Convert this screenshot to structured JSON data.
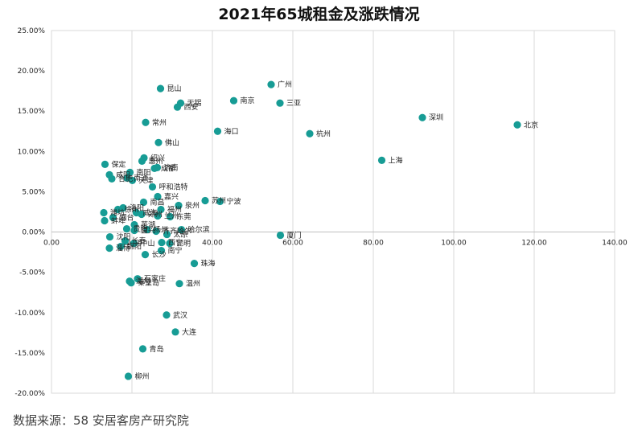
{
  "chart_data": {
    "type": "scatter",
    "title": "2021年65城租金及涨跌情况",
    "xlabel": "",
    "ylabel": "",
    "xlim": [
      0,
      140
    ],
    "ylim": [
      -20,
      25
    ],
    "x_ticks": [
      "0.00",
      "20.00",
      "40.00",
      "60.00",
      "80.00",
      "100.00",
      "120.00",
      "140.00"
    ],
    "y_ticks": [
      "-20.00%",
      "-15.00%",
      "-10.00%",
      "-5.00%",
      "0.00%",
      "5.00%",
      "10.00%",
      "15.00%",
      "20.00%",
      "25.00%"
    ],
    "grid": "vertical",
    "marker_color": "#179c95",
    "points": [
      {
        "name": "北京",
        "x": 115.8,
        "y": 13.3
      },
      {
        "name": "深圳",
        "x": 92.2,
        "y": 14.2
      },
      {
        "name": "上海",
        "x": 82.1,
        "y": 8.9
      },
      {
        "name": "杭州",
        "x": 64.2,
        "y": 12.2
      },
      {
        "name": "三亚",
        "x": 56.8,
        "y": 16.0
      },
      {
        "name": "广州",
        "x": 54.6,
        "y": 18.3
      },
      {
        "name": "南京",
        "x": 45.3,
        "y": 16.3
      },
      {
        "name": "厦门",
        "x": 56.9,
        "y": -0.4
      },
      {
        "name": "海口",
        "x": 41.3,
        "y": 12.5
      },
      {
        "name": "苏州",
        "x": 38.2,
        "y": 3.9
      },
      {
        "name": "宁波",
        "x": 41.9,
        "y": 3.8
      },
      {
        "name": "昆山",
        "x": 27.1,
        "y": 17.8
      },
      {
        "name": "无锡",
        "x": 32.1,
        "y": 16.0
      },
      {
        "name": "西安",
        "x": 31.3,
        "y": 15.5
      },
      {
        "name": "常州",
        "x": 23.4,
        "y": 13.6
      },
      {
        "name": "佛山",
        "x": 26.6,
        "y": 11.1
      },
      {
        "name": "惠州",
        "x": 22.5,
        "y": 8.8
      },
      {
        "name": "绍兴",
        "x": 23.0,
        "y": 9.2
      },
      {
        "name": "济南",
        "x": 26.3,
        "y": 8.0
      },
      {
        "name": "成都",
        "x": 25.6,
        "y": 7.9
      },
      {
        "name": "保定",
        "x": 13.3,
        "y": 8.4
      },
      {
        "name": "南阳",
        "x": 19.5,
        "y": 7.4
      },
      {
        "name": "咸阳",
        "x": 14.4,
        "y": 7.1
      },
      {
        "name": "南通",
        "x": 18.8,
        "y": 6.7
      },
      {
        "name": "天津",
        "x": 20.1,
        "y": 6.4
      },
      {
        "name": "合肥",
        "x": 15.0,
        "y": 6.6
      },
      {
        "name": "呼和浩特",
        "x": 25.1,
        "y": 5.6
      },
      {
        "name": "嘉兴",
        "x": 26.4,
        "y": 4.4
      },
      {
        "name": "泉州",
        "x": 31.6,
        "y": 3.3
      },
      {
        "name": "南昌",
        "x": 22.9,
        "y": 3.7
      },
      {
        "name": "福州",
        "x": 27.2,
        "y": 2.8
      },
      {
        "name": "徐州",
        "x": 16.5,
        "y": 2.8
      },
      {
        "name": "洛阳",
        "x": 17.8,
        "y": 3.0
      },
      {
        "name": "潍坊",
        "x": 13.0,
        "y": 2.4
      },
      {
        "name": "威海",
        "x": 21.1,
        "y": 2.4
      },
      {
        "name": "郑州",
        "x": 22.4,
        "y": 2.2
      },
      {
        "name": "兰州",
        "x": 26.4,
        "y": 2.0
      },
      {
        "name": "东莞",
        "x": 29.5,
        "y": 1.9
      },
      {
        "name": "烟台",
        "x": 15.3,
        "y": 1.8
      },
      {
        "name": "蚌埠",
        "x": 13.2,
        "y": 1.4
      },
      {
        "name": "哈尔滨",
        "x": 32.3,
        "y": 0.3
      },
      {
        "name": "贵阳",
        "x": 18.7,
        "y": 0.4
      },
      {
        "name": "芜湖",
        "x": 20.6,
        "y": 0.9
      },
      {
        "name": "宜兴",
        "x": 20.6,
        "y": 0.2
      },
      {
        "name": "扬州",
        "x": 23.8,
        "y": 0.3
      },
      {
        "name": "齐齐哈尔",
        "x": 26.0,
        "y": 0.1
      },
      {
        "name": "太原",
        "x": 28.7,
        "y": -0.3
      },
      {
        "name": "沈阳",
        "x": 14.5,
        "y": -0.6
      },
      {
        "name": "长春",
        "x": 18.3,
        "y": -1.1
      },
      {
        "name": "中山",
        "x": 20.5,
        "y": -1.4
      },
      {
        "name": "昆明",
        "x": 29.4,
        "y": -1.4
      },
      {
        "name": "西宁",
        "x": 27.4,
        "y": -1.3
      },
      {
        "name": "淄博",
        "x": 14.4,
        "y": -2.0
      },
      {
        "name": "锦阳",
        "x": 17.2,
        "y": -1.8
      },
      {
        "name": "南宁",
        "x": 27.3,
        "y": -2.3
      },
      {
        "name": "长沙",
        "x": 23.3,
        "y": -2.8
      },
      {
        "name": "珠海",
        "x": 35.5,
        "y": -3.9
      },
      {
        "name": "石家庄",
        "x": 21.4,
        "y": -5.8
      },
      {
        "name": "秦皇岛",
        "x": 19.8,
        "y": -6.3
      },
      {
        "name": "温州",
        "x": 31.8,
        "y": -6.4
      },
      {
        "name": "湖州",
        "x": 19.4,
        "y": -6.1
      },
      {
        "name": "武汉",
        "x": 28.6,
        "y": -10.3
      },
      {
        "name": "大连",
        "x": 30.8,
        "y": -12.4
      },
      {
        "name": "青岛",
        "x": 22.7,
        "y": -14.5
      },
      {
        "name": "柳州",
        "x": 19.1,
        "y": -17.9
      }
    ]
  },
  "footer": {
    "source_label": "数据来源：58 安居客房产研究院"
  }
}
